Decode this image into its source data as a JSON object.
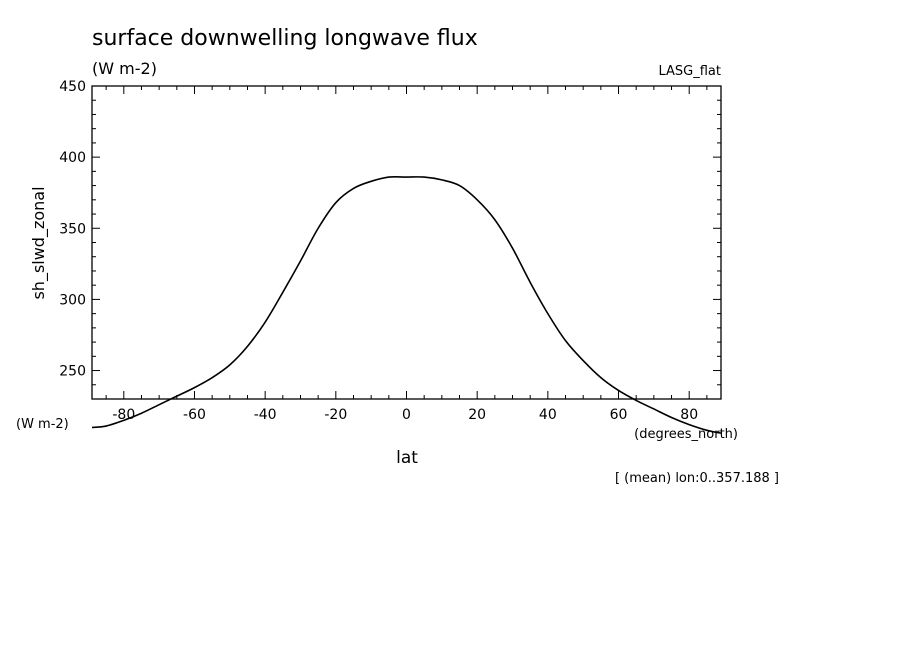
{
  "chart_data": {
    "type": "line",
    "title": "surface downwelling longwave flux",
    "subtitle": "(W m-2)",
    "dataset_label": "LASG_flat",
    "xlabel": "lat",
    "ylabel": "sh_slwd_zonal",
    "x_units": "(degrees_north)",
    "y_units": "(W m-2)",
    "footnote": "[ (mean) lon:0..357.188 ]",
    "xlim": [
      -89,
      89
    ],
    "ylim": [
      230,
      450
    ],
    "x_ticks": [
      -80,
      -60,
      -40,
      -20,
      0,
      20,
      40,
      60,
      80
    ],
    "x_tick_labels": [
      "-80",
      "-60",
      "-40",
      "-20",
      "0",
      "20",
      "40",
      "60",
      "80"
    ],
    "y_ticks": [
      250,
      300,
      350,
      400,
      450
    ],
    "y_tick_labels": [
      "250",
      "300",
      "350",
      "400",
      "450"
    ],
    "series": [
      {
        "x": [
          -89,
          -85,
          -80,
          -75,
          -70,
          -65,
          -60,
          -55,
          -50,
          -45,
          -40,
          -35,
          -30,
          -25,
          -20,
          -15,
          -10,
          -5,
          0,
          5,
          10,
          15,
          20,
          25,
          30,
          35,
          40,
          45,
          50,
          55,
          60,
          65,
          70,
          75,
          80,
          85,
          89
        ],
        "values": [
          210,
          211,
          215,
          220,
          226,
          232,
          238,
          245,
          254,
          267,
          284,
          305,
          327,
          350,
          368,
          378,
          383,
          386,
          386,
          386,
          384,
          380,
          370,
          356,
          336,
          312,
          290,
          271,
          257,
          245,
          236,
          229,
          223,
          217,
          212,
          208,
          206
        ]
      }
    ]
  }
}
